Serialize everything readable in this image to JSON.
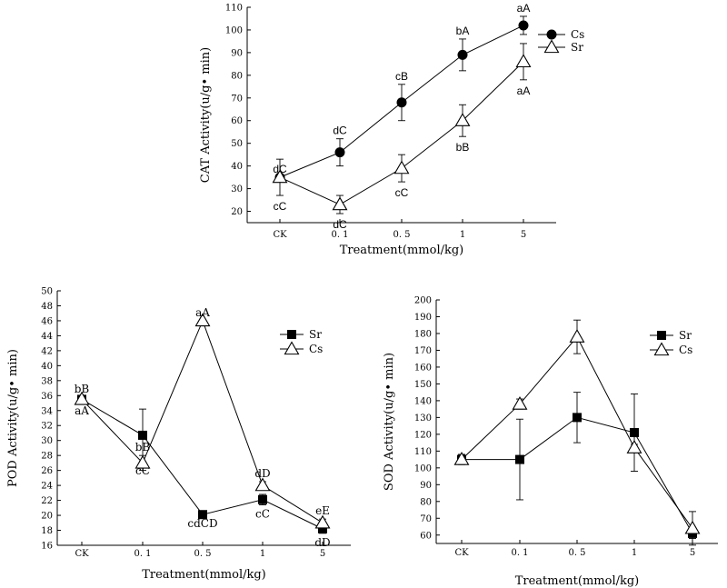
{
  "chart_data": [
    {
      "id": "cat",
      "type": "line",
      "categories": [
        "CK",
        "0. 1",
        "0. 5",
        "1",
        "5"
      ],
      "ylabel": "CAT Activity(u/g• min)",
      "xlabel": "Treatment(mmol/kg)",
      "ylim": [
        15,
        110
      ],
      "yticks": [
        20,
        30,
        40,
        50,
        60,
        70,
        80,
        90,
        100,
        110
      ],
      "legend": "top-right",
      "grid": false,
      "series": [
        {
          "name": "Cs",
          "marker": "circle-filled",
          "values": [
            35,
            46,
            68,
            89,
            102
          ],
          "error": [
            0,
            6,
            8,
            7,
            4
          ],
          "labels": [
            "dC",
            "dC",
            "cB",
            "bA",
            "aA"
          ],
          "label_side": "above"
        },
        {
          "name": "Sr",
          "marker": "triangle-open",
          "values": [
            35,
            23,
            39,
            60,
            86
          ],
          "error": [
            8,
            4,
            6,
            7,
            8
          ],
          "labels": [
            "cC",
            "dC",
            "cC",
            "bB",
            "aA"
          ],
          "label_side": "below"
        }
      ]
    },
    {
      "id": "pod",
      "type": "line",
      "categories": [
        "CK",
        "0. 1",
        "0. 5",
        "1",
        "5"
      ],
      "ylabel": "POD Activity(u/g• min)",
      "xlabel": "Treatment(mmol/kg)",
      "ylim": [
        16,
        50
      ],
      "yticks": [
        16,
        18,
        20,
        22,
        24,
        26,
        28,
        30,
        32,
        34,
        36,
        38,
        40,
        42,
        44,
        46,
        48,
        50
      ],
      "legend": "top-right",
      "grid": false,
      "series": [
        {
          "name": "Sr",
          "marker": "square-filled",
          "values": [
            35.5,
            30.7,
            20.1,
            22.1,
            18.2
          ],
          "error": [
            0.3,
            3.5,
            0,
            0.7,
            0.6
          ],
          "labels": [
            "aA",
            "cC",
            "cdCD",
            "cC",
            "dD"
          ],
          "label_side": "below"
        },
        {
          "name": "Cs",
          "marker": "triangle-open",
          "values": [
            35.5,
            27,
            46,
            24,
            19
          ],
          "error": [
            0.3,
            1,
            0,
            0.5,
            0.5
          ],
          "labels": [
            "bB",
            "bB",
            "aA",
            "dD",
            "eE"
          ],
          "label_side": "above"
        }
      ]
    },
    {
      "id": "sod",
      "type": "line",
      "categories": [
        "CK",
        "0. 1",
        "0. 5",
        "1",
        "5"
      ],
      "ylabel": "SOD Activity(u/g• min)",
      "xlabel": "Treatment(mmol/kg)",
      "ylim": [
        55,
        200
      ],
      "yticks": [
        60,
        70,
        80,
        90,
        100,
        110,
        120,
        130,
        140,
        150,
        160,
        170,
        180,
        190,
        200
      ],
      "legend": "top-right",
      "grid": false,
      "series": [
        {
          "name": "Sr",
          "marker": "square-filled",
          "values": [
            105,
            105,
            130,
            121,
            61
          ],
          "error": [
            3,
            24,
            15,
            23,
            3
          ],
          "labels": [],
          "label_side": "above"
        },
        {
          "name": "Cs",
          "marker": "triangle-open",
          "values": [
            105,
            138,
            178,
            112,
            64
          ],
          "error": [
            3,
            3,
            10,
            2,
            10
          ],
          "labels": [],
          "label_side": "above"
        }
      ]
    }
  ]
}
